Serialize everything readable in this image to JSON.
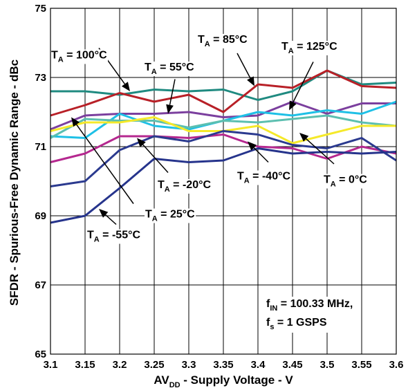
{
  "chart_data": {
    "type": "line",
    "xlabel": "AV",
    "xlabel_sub": "DD",
    "xlabel_rest": " - Supply Voltage - V",
    "ylabel": "SFDR - Spurious-Free Dynamic Range - dBc",
    "xlim": [
      3.1,
      3.6
    ],
    "ylim": [
      65,
      75
    ],
    "x": [
      3.1,
      3.15,
      3.2,
      3.25,
      3.3,
      3.35,
      3.4,
      3.45,
      3.5,
      3.55,
      3.6
    ],
    "x_tick_labels": [
      "3.1",
      "3.15",
      "3.2",
      "3.25",
      "3.3",
      "3.35",
      "3.4",
      "3.45",
      "3.5",
      "3.55",
      "3.6"
    ],
    "y_ticks": [
      65,
      67,
      69,
      71,
      73,
      75
    ],
    "y_tick_labels": [
      "65",
      "67",
      "69",
      "71",
      "73",
      "75"
    ],
    "grid": true,
    "series": [
      {
        "name": "T_A = 100°C",
        "color": "#1f8a80",
        "values": [
          72.6,
          72.6,
          72.5,
          72.65,
          72.6,
          72.65,
          72.35,
          72.6,
          73.2,
          72.8,
          72.85
        ]
      },
      {
        "name": "T_A = 85°C",
        "color": "#b82027",
        "values": [
          71.9,
          72.2,
          72.55,
          72.3,
          72.5,
          72.0,
          72.8,
          72.7,
          73.2,
          72.75,
          72.7
        ]
      },
      {
        "name": "T_A = 125°C",
        "color": "#7b3f9e",
        "values": [
          71.5,
          71.9,
          71.95,
          71.95,
          72.0,
          71.85,
          71.9,
          72.3,
          71.95,
          72.25,
          72.25
        ]
      },
      {
        "name": "T_A = 55°C",
        "color": "#1ec0e6",
        "values": [
          71.3,
          71.25,
          71.95,
          71.6,
          71.5,
          71.75,
          72.0,
          71.9,
          72.05,
          71.95,
          72.3
        ]
      },
      {
        "name": "T_A = -20°C",
        "color": "#5cbfb0",
        "values": [
          71.25,
          71.8,
          71.75,
          71.75,
          71.55,
          71.75,
          71.7,
          71.8,
          71.9,
          71.7,
          71.6
        ]
      },
      {
        "name": "T_A = -40°C",
        "color": "#f5e92a",
        "values": [
          71.45,
          71.7,
          71.7,
          71.85,
          71.45,
          71.45,
          71.6,
          71.1,
          71.35,
          71.6,
          71.6
        ]
      },
      {
        "name": "T_A = 25°C",
        "color": "#b5288f",
        "values": [
          70.55,
          70.8,
          71.3,
          71.3,
          71.25,
          71.35,
          71.0,
          70.95,
          70.65,
          71.0,
          70.8
        ]
      },
      {
        "name": "T_A = 0°C",
        "color": "#2b3a8f",
        "values": [
          69.85,
          70.0,
          70.9,
          71.3,
          71.15,
          71.45,
          71.35,
          71.05,
          70.95,
          71.25,
          70.6
        ]
      },
      {
        "name": "T_A = -55°C",
        "color": "#26348c",
        "values": [
          68.8,
          69.0,
          69.8,
          70.65,
          70.55,
          70.6,
          70.95,
          70.8,
          70.85,
          70.8,
          70.85
        ]
      }
    ],
    "annotations": [
      {
        "name": "T_A = 100°C",
        "main": "T",
        "sub": "A",
        "rest": " = 100°C",
        "tx": 3.101,
        "ty": 73.55,
        "ax": 3.17,
        "ay": 73.85,
        "hx": 3.215,
        "hy": 72.6
      },
      {
        "name": "T_A = 85°C",
        "main": "T",
        "sub": "A",
        "rest": " = 85°C",
        "tx": 3.313,
        "ty": 74.0,
        "ax": 3.37,
        "ay": 73.7,
        "hx": 3.395,
        "hy": 72.75
      },
      {
        "name": "T_A = 55°C",
        "main": "T",
        "sub": "A",
        "rest": " = 55°C",
        "tx": 3.236,
        "ty": 73.2,
        "ax": 3.28,
        "ay": 72.95,
        "hx": 3.27,
        "hy": 71.95
      },
      {
        "name": "T_A = 125°C",
        "main": "T",
        "sub": "A",
        "rest": " = 125°C",
        "tx": 3.434,
        "ty": 73.8,
        "ax": 3.48,
        "ay": 73.45,
        "hx": 3.445,
        "hy": 72.05
      },
      {
        "name": "T_A = -20°C",
        "main": "T",
        "sub": "A",
        "rest": " = -20°C",
        "tx": 3.255,
        "ty": 69.8,
        "ax": 3.27,
        "ay": 70.25,
        "hx": 3.225,
        "hy": 71.25
      },
      {
        "name": "T_A = -40°C",
        "main": "T",
        "sub": "A",
        "rest": " = -40°C",
        "tx": 3.37,
        "ty": 70.05,
        "ax": 3.415,
        "ay": 70.55,
        "hx": 3.385,
        "hy": 71.15
      },
      {
        "name": "T_A = 0°C",
        "main": "T",
        "sub": "A",
        "rest": " = 0°C",
        "tx": 3.495,
        "ty": 69.95,
        "ax": 3.51,
        "ay": 70.5,
        "hx": 3.46,
        "hy": 71.4
      },
      {
        "name": "T_A = 25°C",
        "main": "T",
        "sub": "A",
        "rest": " = 25°C",
        "tx": 3.237,
        "ty": 68.95,
        "ax": 3.22,
        "ay": 69.35,
        "hx": 3.13,
        "hy": 71.85
      },
      {
        "name": "T_A = -55°C",
        "main": "T",
        "sub": "A",
        "rest": " = -55°C",
        "tx": 3.153,
        "ty": 68.35,
        "ax": 3.195,
        "ay": 68.75,
        "hx": 3.17,
        "hy": 69.2
      }
    ],
    "conditions": [
      {
        "main": "f",
        "sub": "IN",
        "rest": " = 100.33 MHz,"
      },
      {
        "main": "f",
        "sub": "s",
        "rest": " = 1 GSPS"
      }
    ]
  }
}
